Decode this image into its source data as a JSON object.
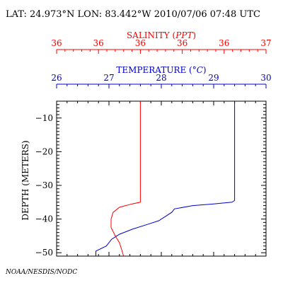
{
  "header": {
    "location_line": "LAT: 24.973°N LON: 83.442°W 2010/07/06 07:48 UTC"
  },
  "footer": {
    "credit": "NOAA/NESDIS/NODC"
  },
  "colors": {
    "salinity": "#ff0000",
    "temperature": "#0000cc",
    "axis": "#000000"
  },
  "chart_data": {
    "type": "line",
    "title": "LAT: 24.973°N LON: 83.442°W 2010/07/06 07:48 UTC",
    "ylabel": "DEPTH (METERS)",
    "ylim": [
      -51,
      -5
    ],
    "y_ticks": [
      -10,
      -20,
      -30,
      -40,
      -50
    ],
    "y_tick_labels": [
      "−10",
      "−20",
      "−30",
      "−40",
      "−50"
    ],
    "grid": false,
    "axes": {
      "salinity": {
        "label_prefix": "SALINITY (",
        "label_unit": "PPT",
        "label_suffix": ")",
        "tick_labels": [
          "36",
          "36",
          "36",
          "36",
          "36",
          "37"
        ],
        "position": "top"
      },
      "temperature": {
        "label_prefix": "TEMPERATURE (",
        "label_unit": "°C",
        "label_suffix": ")",
        "range": [
          26,
          30
        ],
        "ticks": [
          26,
          27,
          28,
          29,
          30
        ],
        "tick_labels": [
          "26",
          "27",
          "28",
          "29",
          "30"
        ],
        "position": "top"
      }
    },
    "series": [
      {
        "name": "SALINITY",
        "axis": "salinity",
        "points": [
          {
            "x": 36.4,
            "y": -5
          },
          {
            "x": 36.4,
            "y": -35
          },
          {
            "x": 36.36,
            "y": -35.5
          },
          {
            "x": 36.3,
            "y": -36.5
          },
          {
            "x": 36.27,
            "y": -38
          },
          {
            "x": 36.26,
            "y": -40
          },
          {
            "x": 36.26,
            "y": -42.5
          },
          {
            "x": 36.28,
            "y": -45
          },
          {
            "x": 36.3,
            "y": -47
          },
          {
            "x": 36.31,
            "y": -49
          },
          {
            "x": 36.32,
            "y": -51
          }
        ]
      },
      {
        "name": "TEMPERATURE",
        "axis": "temperature",
        "points": [
          {
            "x": 29.4,
            "y": -5
          },
          {
            "x": 29.4,
            "y": -34.5
          },
          {
            "x": 29.35,
            "y": -35
          },
          {
            "x": 29.0,
            "y": -35.5
          },
          {
            "x": 28.6,
            "y": -36
          },
          {
            "x": 28.25,
            "y": -37
          },
          {
            "x": 28.2,
            "y": -38
          },
          {
            "x": 28.05,
            "y": -39.5
          },
          {
            "x": 27.95,
            "y": -40.5
          },
          {
            "x": 27.75,
            "y": -41.5
          },
          {
            "x": 27.45,
            "y": -43
          },
          {
            "x": 27.2,
            "y": -44.5
          },
          {
            "x": 27.05,
            "y": -46
          },
          {
            "x": 26.95,
            "y": -48
          },
          {
            "x": 26.75,
            "y": -49.5
          },
          {
            "x": 26.75,
            "y": -51
          }
        ]
      }
    ]
  }
}
